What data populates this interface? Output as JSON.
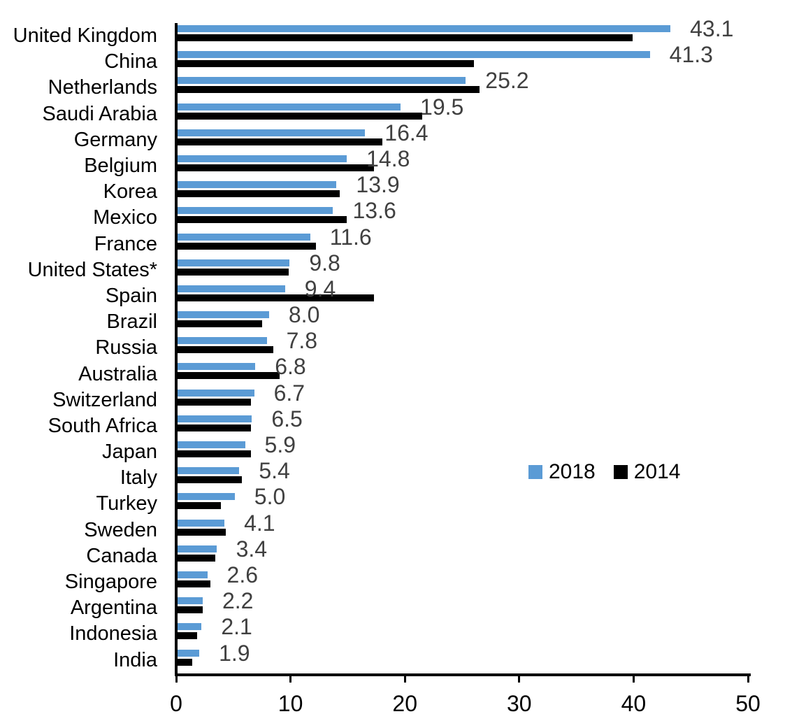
{
  "chart_data": {
    "type": "bar",
    "orientation": "horizontal",
    "title": "",
    "categories": [
      "United Kingdom",
      "China",
      "Netherlands",
      "Saudi Arabia",
      "Germany",
      "Belgium",
      "Korea",
      "Mexico",
      "France",
      "United States*",
      "Spain",
      "Brazil",
      "Russia",
      "Australia",
      "Switzerland",
      "South Africa",
      "Japan",
      "Italy",
      "Turkey",
      "Sweden",
      "Canada",
      "Singapore",
      "Argentina",
      "Indonesia",
      "India"
    ],
    "series": [
      {
        "name": "2018",
        "color": "#5B9BD5",
        "values": [
          43.1,
          41.3,
          25.2,
          19.5,
          16.4,
          14.8,
          13.9,
          13.6,
          11.6,
          9.8,
          9.4,
          8.0,
          7.8,
          6.8,
          6.7,
          6.5,
          5.9,
          5.4,
          5.0,
          4.1,
          3.4,
          2.6,
          2.2,
          2.1,
          1.9
        ]
      },
      {
        "name": "2014",
        "color": "#000000",
        "values": [
          39.8,
          25.9,
          26.4,
          21.4,
          17.9,
          17.2,
          14.2,
          14.8,
          12.1,
          9.7,
          17.2,
          7.4,
          8.4,
          8.9,
          6.4,
          6.4,
          6.4,
          5.6,
          3.8,
          4.2,
          3.3,
          2.9,
          2.2,
          1.7,
          1.3
        ]
      }
    ],
    "data_labels": [
      "43.1",
      "41.3",
      "25.2",
      "19.5",
      "16.4",
      "14.8",
      "13.9",
      "13.6",
      "11.6",
      "9.8",
      "9.4",
      "8.0",
      "7.8",
      "6.8",
      "6.7",
      "6.5",
      "5.9",
      "5.4",
      "5.0",
      "4.1",
      "3.4",
      "2.6",
      "2.2",
      "2.1",
      "1.9"
    ],
    "data_labels_series": "2018",
    "xlim": [
      0,
      50
    ],
    "x_ticks": [
      "0",
      "10",
      "20",
      "30",
      "40",
      "50"
    ],
    "grid": false,
    "legend_position": "center-right"
  },
  "colors": {
    "bar_2018": "#5B9BD5",
    "bar_2014": "#000000",
    "axis": "#000000",
    "value_label": "#404040"
  }
}
